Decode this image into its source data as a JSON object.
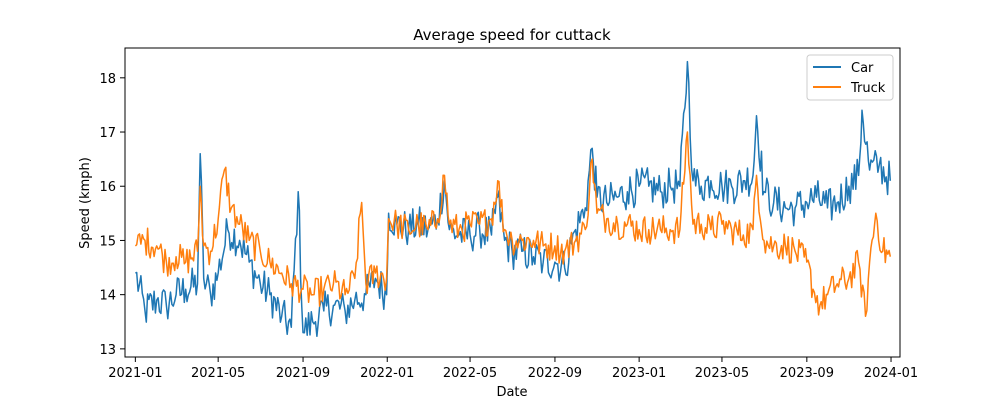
{
  "chart_data": {
    "type": "line",
    "title": "Average speed for cuttack",
    "xlabel": "Date",
    "ylabel": "Speed (kmph)",
    "xlim": [
      "2020-12-17",
      "2024-01-14"
    ],
    "ylim": [
      12.85,
      18.55
    ],
    "x_ticks": [
      "2021-01",
      "2021-05",
      "2021-09",
      "2022-01",
      "2022-05",
      "2022-09",
      "2023-01",
      "2023-05",
      "2023-09",
      "2024-01"
    ],
    "y_ticks": [
      13,
      14,
      15,
      16,
      17,
      18
    ],
    "grid": false,
    "legend_position": "upper right",
    "series": [
      {
        "name": "Car",
        "color": "#1f77b4",
        "points": [
          [
            "2021-01-01",
            14.4
          ],
          [
            "2021-01-15",
            13.7
          ],
          [
            "2021-02-01",
            13.9
          ],
          [
            "2021-02-15",
            13.8
          ],
          [
            "2021-03-01",
            14.0
          ],
          [
            "2021-03-15",
            14.1
          ],
          [
            "2021-04-01",
            14.2
          ],
          [
            "2021-04-05",
            16.6
          ],
          [
            "2021-04-10",
            14.3
          ],
          [
            "2021-04-20",
            14.0
          ],
          [
            "2021-05-01",
            14.4
          ],
          [
            "2021-05-15",
            15.2
          ],
          [
            "2021-06-01",
            15.0
          ],
          [
            "2021-06-15",
            14.6
          ],
          [
            "2021-07-01",
            14.2
          ],
          [
            "2021-07-15",
            14.0
          ],
          [
            "2021-08-01",
            13.6
          ],
          [
            "2021-08-15",
            13.4
          ],
          [
            "2021-08-25",
            15.9
          ],
          [
            "2021-09-01",
            13.3
          ],
          [
            "2021-09-15",
            13.5
          ],
          [
            "2021-10-01",
            13.7
          ],
          [
            "2021-10-15",
            13.8
          ],
          [
            "2021-11-01",
            13.7
          ],
          [
            "2021-11-15",
            13.9
          ],
          [
            "2021-12-01",
            14.0
          ],
          [
            "2021-12-15",
            14.3
          ],
          [
            "2021-12-31",
            14.0
          ],
          [
            "2022-01-03",
            15.5
          ],
          [
            "2022-01-15",
            15.3
          ],
          [
            "2022-02-01",
            15.2
          ],
          [
            "2022-02-15",
            15.3
          ],
          [
            "2022-03-01",
            15.2
          ],
          [
            "2022-03-15",
            15.4
          ],
          [
            "2022-03-25",
            16.1
          ],
          [
            "2022-04-01",
            15.2
          ],
          [
            "2022-04-15",
            15.1
          ],
          [
            "2022-05-01",
            15.1
          ],
          [
            "2022-05-15",
            15.2
          ],
          [
            "2022-06-01",
            15.1
          ],
          [
            "2022-06-10",
            15.8
          ],
          [
            "2022-06-20",
            15.0
          ],
          [
            "2022-07-01",
            14.8
          ],
          [
            "2022-07-15",
            14.8
          ],
          [
            "2022-08-01",
            14.7
          ],
          [
            "2022-08-15",
            14.6
          ],
          [
            "2022-09-01",
            14.6
          ],
          [
            "2022-09-15",
            14.5
          ],
          [
            "2022-10-01",
            15.2
          ],
          [
            "2022-10-15",
            15.6
          ],
          [
            "2022-10-25",
            16.7
          ],
          [
            "2022-11-01",
            15.8
          ],
          [
            "2022-11-15",
            15.7
          ],
          [
            "2022-12-01",
            15.8
          ],
          [
            "2022-12-15",
            15.9
          ],
          [
            "2023-01-01",
            16.0
          ],
          [
            "2023-01-15",
            16.0
          ],
          [
            "2023-02-01",
            15.9
          ],
          [
            "2023-02-15",
            16.0
          ],
          [
            "2023-03-01",
            16.0
          ],
          [
            "2023-03-12",
            18.3
          ],
          [
            "2023-03-20",
            16.1
          ],
          [
            "2023-04-01",
            16.0
          ],
          [
            "2023-04-15",
            16.1
          ],
          [
            "2023-05-01",
            16.0
          ],
          [
            "2023-05-15",
            16.0
          ],
          [
            "2023-06-01",
            16.1
          ],
          [
            "2023-06-15",
            16.2
          ],
          [
            "2023-06-20",
            17.3
          ],
          [
            "2023-07-01",
            15.9
          ],
          [
            "2023-07-15",
            15.7
          ],
          [
            "2023-08-01",
            15.6
          ],
          [
            "2023-08-15",
            15.6
          ],
          [
            "2023-09-01",
            15.7
          ],
          [
            "2023-09-15",
            15.8
          ],
          [
            "2023-10-01",
            15.6
          ],
          [
            "2023-10-15",
            15.7
          ],
          [
            "2023-11-01",
            16.0
          ],
          [
            "2023-11-15",
            16.2
          ],
          [
            "2023-11-20",
            17.4
          ],
          [
            "2023-12-01",
            16.3
          ],
          [
            "2023-12-15",
            16.4
          ],
          [
            "2023-12-31",
            16.1
          ]
        ]
      },
      {
        "name": "Truck",
        "color": "#ff7f0e",
        "points": [
          [
            "2021-01-01",
            14.9
          ],
          [
            "2021-01-15",
            15.0
          ],
          [
            "2021-02-01",
            14.9
          ],
          [
            "2021-02-15",
            14.6
          ],
          [
            "2021-03-01",
            14.7
          ],
          [
            "2021-03-15",
            14.6
          ],
          [
            "2021-04-01",
            14.8
          ],
          [
            "2021-04-05",
            16.0
          ],
          [
            "2021-04-10",
            14.9
          ],
          [
            "2021-04-20",
            14.8
          ],
          [
            "2021-05-01",
            15.4
          ],
          [
            "2021-05-10",
            16.3
          ],
          [
            "2021-05-20",
            15.6
          ],
          [
            "2021-06-01",
            15.3
          ],
          [
            "2021-06-15",
            15.0
          ],
          [
            "2021-07-01",
            14.8
          ],
          [
            "2021-07-15",
            14.6
          ],
          [
            "2021-08-01",
            14.4
          ],
          [
            "2021-08-15",
            14.2
          ],
          [
            "2021-09-01",
            14.1
          ],
          [
            "2021-09-15",
            14.0
          ],
          [
            "2021-10-01",
            14.1
          ],
          [
            "2021-10-15",
            14.2
          ],
          [
            "2021-11-01",
            14.0
          ],
          [
            "2021-11-15",
            14.3
          ],
          [
            "2021-11-25",
            15.7
          ],
          [
            "2021-12-01",
            14.2
          ],
          [
            "2021-12-15",
            14.4
          ],
          [
            "2021-12-31",
            14.3
          ],
          [
            "2022-01-03",
            15.4
          ],
          [
            "2022-01-15",
            15.3
          ],
          [
            "2022-02-01",
            15.2
          ],
          [
            "2022-02-15",
            15.3
          ],
          [
            "2022-03-01",
            15.2
          ],
          [
            "2022-03-15",
            15.4
          ],
          [
            "2022-03-25",
            16.2
          ],
          [
            "2022-04-01",
            15.3
          ],
          [
            "2022-04-15",
            15.2
          ],
          [
            "2022-05-01",
            15.3
          ],
          [
            "2022-05-15",
            15.3
          ],
          [
            "2022-06-01",
            15.4
          ],
          [
            "2022-06-10",
            16.1
          ],
          [
            "2022-06-20",
            15.2
          ],
          [
            "2022-07-01",
            15.0
          ],
          [
            "2022-07-15",
            15.0
          ],
          [
            "2022-08-01",
            15.0
          ],
          [
            "2022-08-15",
            14.9
          ],
          [
            "2022-09-01",
            14.9
          ],
          [
            "2022-09-15",
            14.8
          ],
          [
            "2022-10-01",
            15.0
          ],
          [
            "2022-10-15",
            15.2
          ],
          [
            "2022-10-25",
            16.5
          ],
          [
            "2022-11-01",
            15.5
          ],
          [
            "2022-11-15",
            15.4
          ],
          [
            "2022-12-01",
            15.3
          ],
          [
            "2022-12-15",
            15.3
          ],
          [
            "2023-01-01",
            15.2
          ],
          [
            "2023-01-15",
            15.2
          ],
          [
            "2023-02-01",
            15.2
          ],
          [
            "2023-02-15",
            15.2
          ],
          [
            "2023-03-01",
            15.2
          ],
          [
            "2023-03-12",
            17.0
          ],
          [
            "2023-03-20",
            15.3
          ],
          [
            "2023-04-01",
            15.3
          ],
          [
            "2023-04-15",
            15.2
          ],
          [
            "2023-05-01",
            15.3
          ],
          [
            "2023-05-15",
            15.2
          ],
          [
            "2023-06-01",
            15.1
          ],
          [
            "2023-06-15",
            15.2
          ],
          [
            "2023-06-20",
            16.2
          ],
          [
            "2023-07-01",
            15.0
          ],
          [
            "2023-07-15",
            14.9
          ],
          [
            "2023-08-01",
            14.9
          ],
          [
            "2023-08-15",
            14.8
          ],
          [
            "2023-09-01",
            14.6
          ],
          [
            "2023-09-10",
            14.1
          ],
          [
            "2023-09-20",
            13.8
          ],
          [
            "2023-10-01",
            14.0
          ],
          [
            "2023-10-15",
            14.2
          ],
          [
            "2023-11-01",
            14.3
          ],
          [
            "2023-11-15",
            14.6
          ],
          [
            "2023-11-25",
            13.6
          ],
          [
            "2023-12-01",
            14.6
          ],
          [
            "2023-12-10",
            15.5
          ],
          [
            "2023-12-20",
            14.8
          ],
          [
            "2023-12-31",
            14.7
          ]
        ]
      }
    ]
  }
}
